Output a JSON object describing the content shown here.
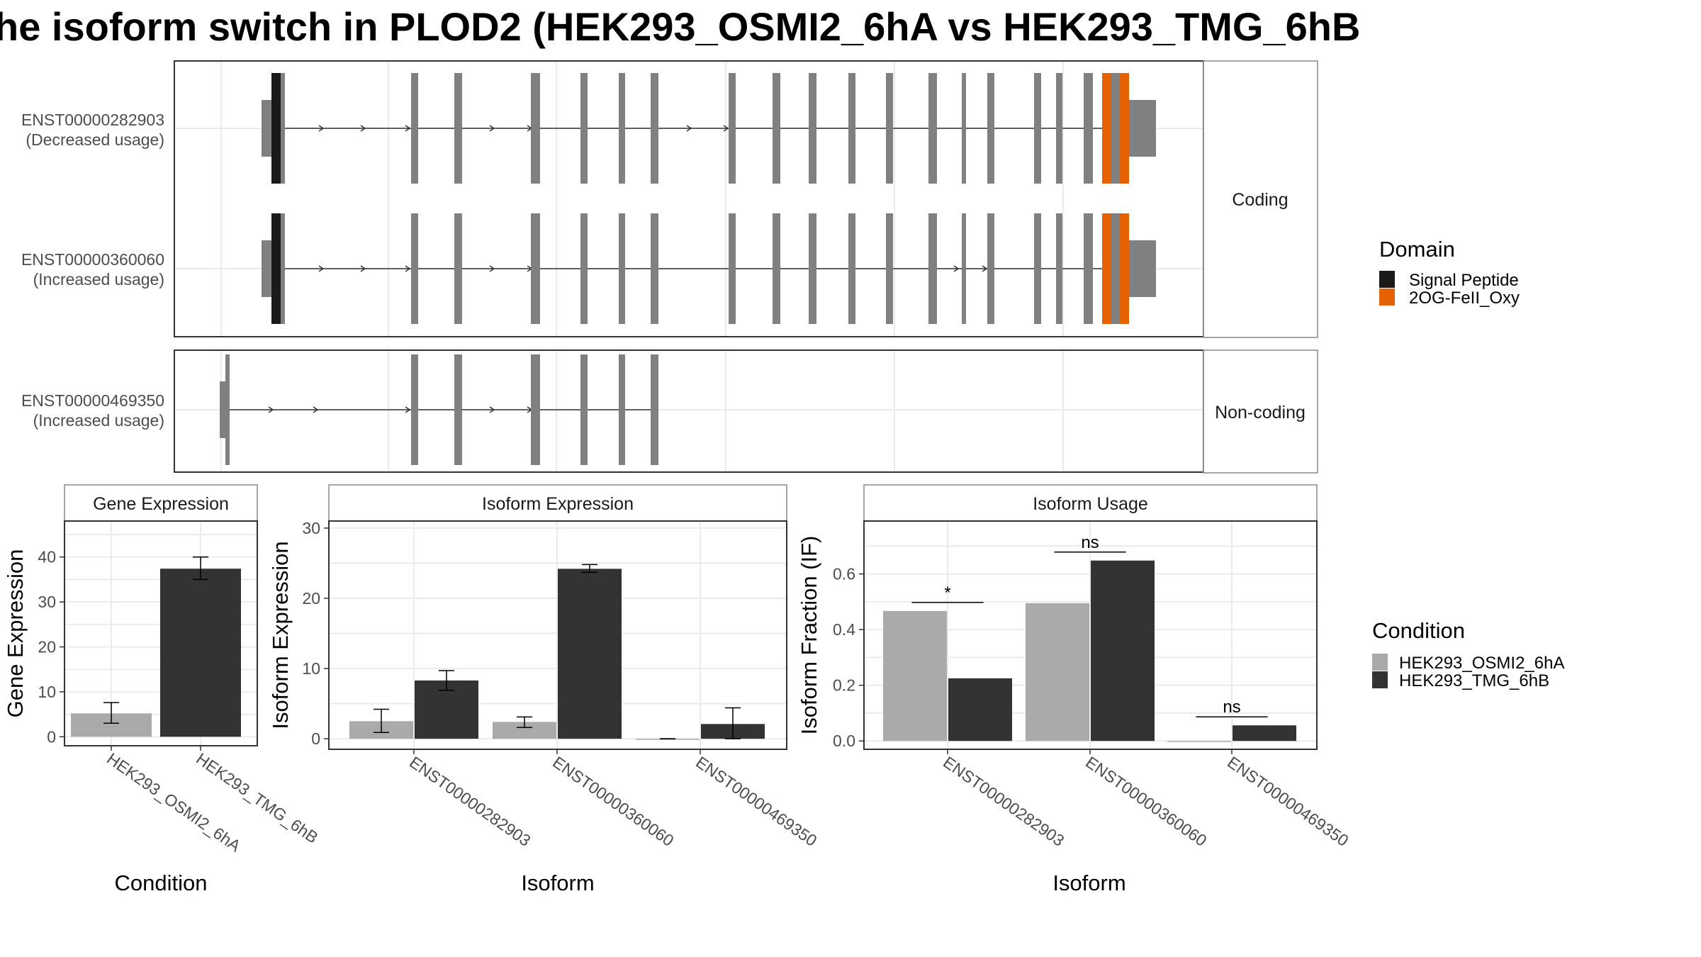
{
  "title": "he isoform switch in PLOD2 (HEK293_OSMI2_6hA vs HEK293_TMG_6hB",
  "colors": {
    "exon": "#808080",
    "signal_peptide": "#1a1a1a",
    "oxy": "#e66101",
    "cond_a": "#aaaaaa",
    "cond_b": "#333333"
  },
  "structure": {
    "coding_facet": "Coding",
    "noncoding_facet": "Non-coding",
    "transcripts": [
      {
        "id": "ENST00000282903",
        "usage": "(Decreased usage)",
        "group": "Coding"
      },
      {
        "id": "ENST00000360060",
        "usage": "(Increased usage)",
        "group": "Coding"
      },
      {
        "id": "ENST00000469350",
        "usage": "(Increased usage)",
        "group": "Non-coding"
      }
    ]
  },
  "legend_domain": {
    "title": "Domain",
    "items": [
      {
        "label": "Signal Peptide",
        "color": "#1a1a1a"
      },
      {
        "label": "2OG-FeII_Oxy",
        "color": "#e66101"
      }
    ]
  },
  "legend_condition": {
    "title": "Condition",
    "items": [
      {
        "label": "HEK293_OSMI2_6hA",
        "color": "#aaaaaa"
      },
      {
        "label": "HEK293_TMG_6hB",
        "color": "#333333"
      }
    ]
  },
  "chart_data": [
    {
      "type": "bar",
      "title": "Gene Expression",
      "xlabel": "Condition",
      "ylabel": "Gene Expression",
      "categories": [
        "HEK293_OSMI2_6hA",
        "HEK293_TMG_6hB"
      ],
      "values": [
        5.2,
        37.4
      ],
      "errors": [
        [
          3.0,
          7.6
        ],
        [
          35.0,
          40.0
        ]
      ],
      "yticks": [
        "0",
        "10",
        "20",
        "30",
        "40"
      ],
      "ylim": [
        -2,
        48
      ]
    },
    {
      "type": "bar",
      "title": "Isoform Expression",
      "xlabel": "Isoform",
      "ylabel": "Isoform Expression",
      "categories": [
        "ENST00000282903",
        "ENST00000360060",
        "ENST00000469350"
      ],
      "series": [
        {
          "name": "HEK293_OSMI2_6hA",
          "values": [
            2.5,
            2.4,
            0.0
          ],
          "errors": [
            [
              0.9,
              4.2
            ],
            [
              1.6,
              3.1
            ],
            [
              0.0,
              0.0
            ]
          ]
        },
        {
          "name": "HEK293_TMG_6hB",
          "values": [
            8.3,
            24.2,
            2.1
          ],
          "errors": [
            [
              6.9,
              9.7
            ],
            [
              23.7,
              24.8
            ],
            [
              0.0,
              4.4
            ]
          ]
        }
      ],
      "yticks": [
        "0",
        "10",
        "20",
        "30"
      ],
      "ylim": [
        -1.5,
        31
      ]
    },
    {
      "type": "bar",
      "title": "Isoform Usage",
      "xlabel": "Isoform",
      "ylabel": "Isoform Fraction (IF)",
      "categories": [
        "ENST00000282903",
        "ENST00000360060",
        "ENST00000469350"
      ],
      "series": [
        {
          "name": "HEK293_OSMI2_6hA",
          "values": [
            0.467,
            0.495,
            0.0
          ]
        },
        {
          "name": "HEK293_TMG_6hB",
          "values": [
            0.225,
            0.648,
            0.056
          ]
        }
      ],
      "significance": [
        "*",
        "ns",
        "ns"
      ],
      "yticks": [
        "0.0",
        "0.2",
        "0.4",
        "0.6"
      ],
      "ylim": [
        -0.03,
        0.79
      ]
    }
  ]
}
